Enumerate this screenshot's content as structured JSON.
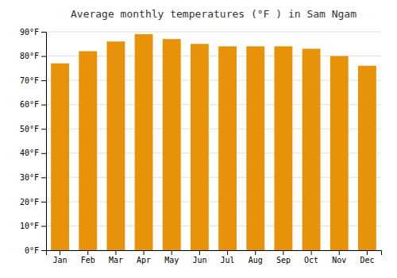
{
  "chart_data": {
    "type": "bar",
    "title": "Average monthly temperatures (°F ) in Sam Ngam",
    "categories": [
      "Jan",
      "Feb",
      "Mar",
      "Apr",
      "May",
      "Jun",
      "Jul",
      "Aug",
      "Sep",
      "Oct",
      "Nov",
      "Dec"
    ],
    "values": [
      77,
      82,
      86,
      89,
      87,
      85,
      84,
      84,
      84,
      83,
      80,
      76
    ],
    "color": "#E8920A",
    "ylim": [
      0,
      90
    ],
    "yticks": [
      {
        "value": 0,
        "label": "0°F"
      },
      {
        "value": 10,
        "label": "10°F"
      },
      {
        "value": 20,
        "label": "20°F"
      },
      {
        "value": 30,
        "label": "30°F"
      },
      {
        "value": 40,
        "label": "40°F"
      },
      {
        "value": 50,
        "label": "50°F"
      },
      {
        "value": 60,
        "label": "60°F"
      },
      {
        "value": 70,
        "label": "70°F"
      },
      {
        "value": 80,
        "label": "80°F"
      },
      {
        "value": 90,
        "label": "90°F"
      }
    ],
    "grid": true
  }
}
